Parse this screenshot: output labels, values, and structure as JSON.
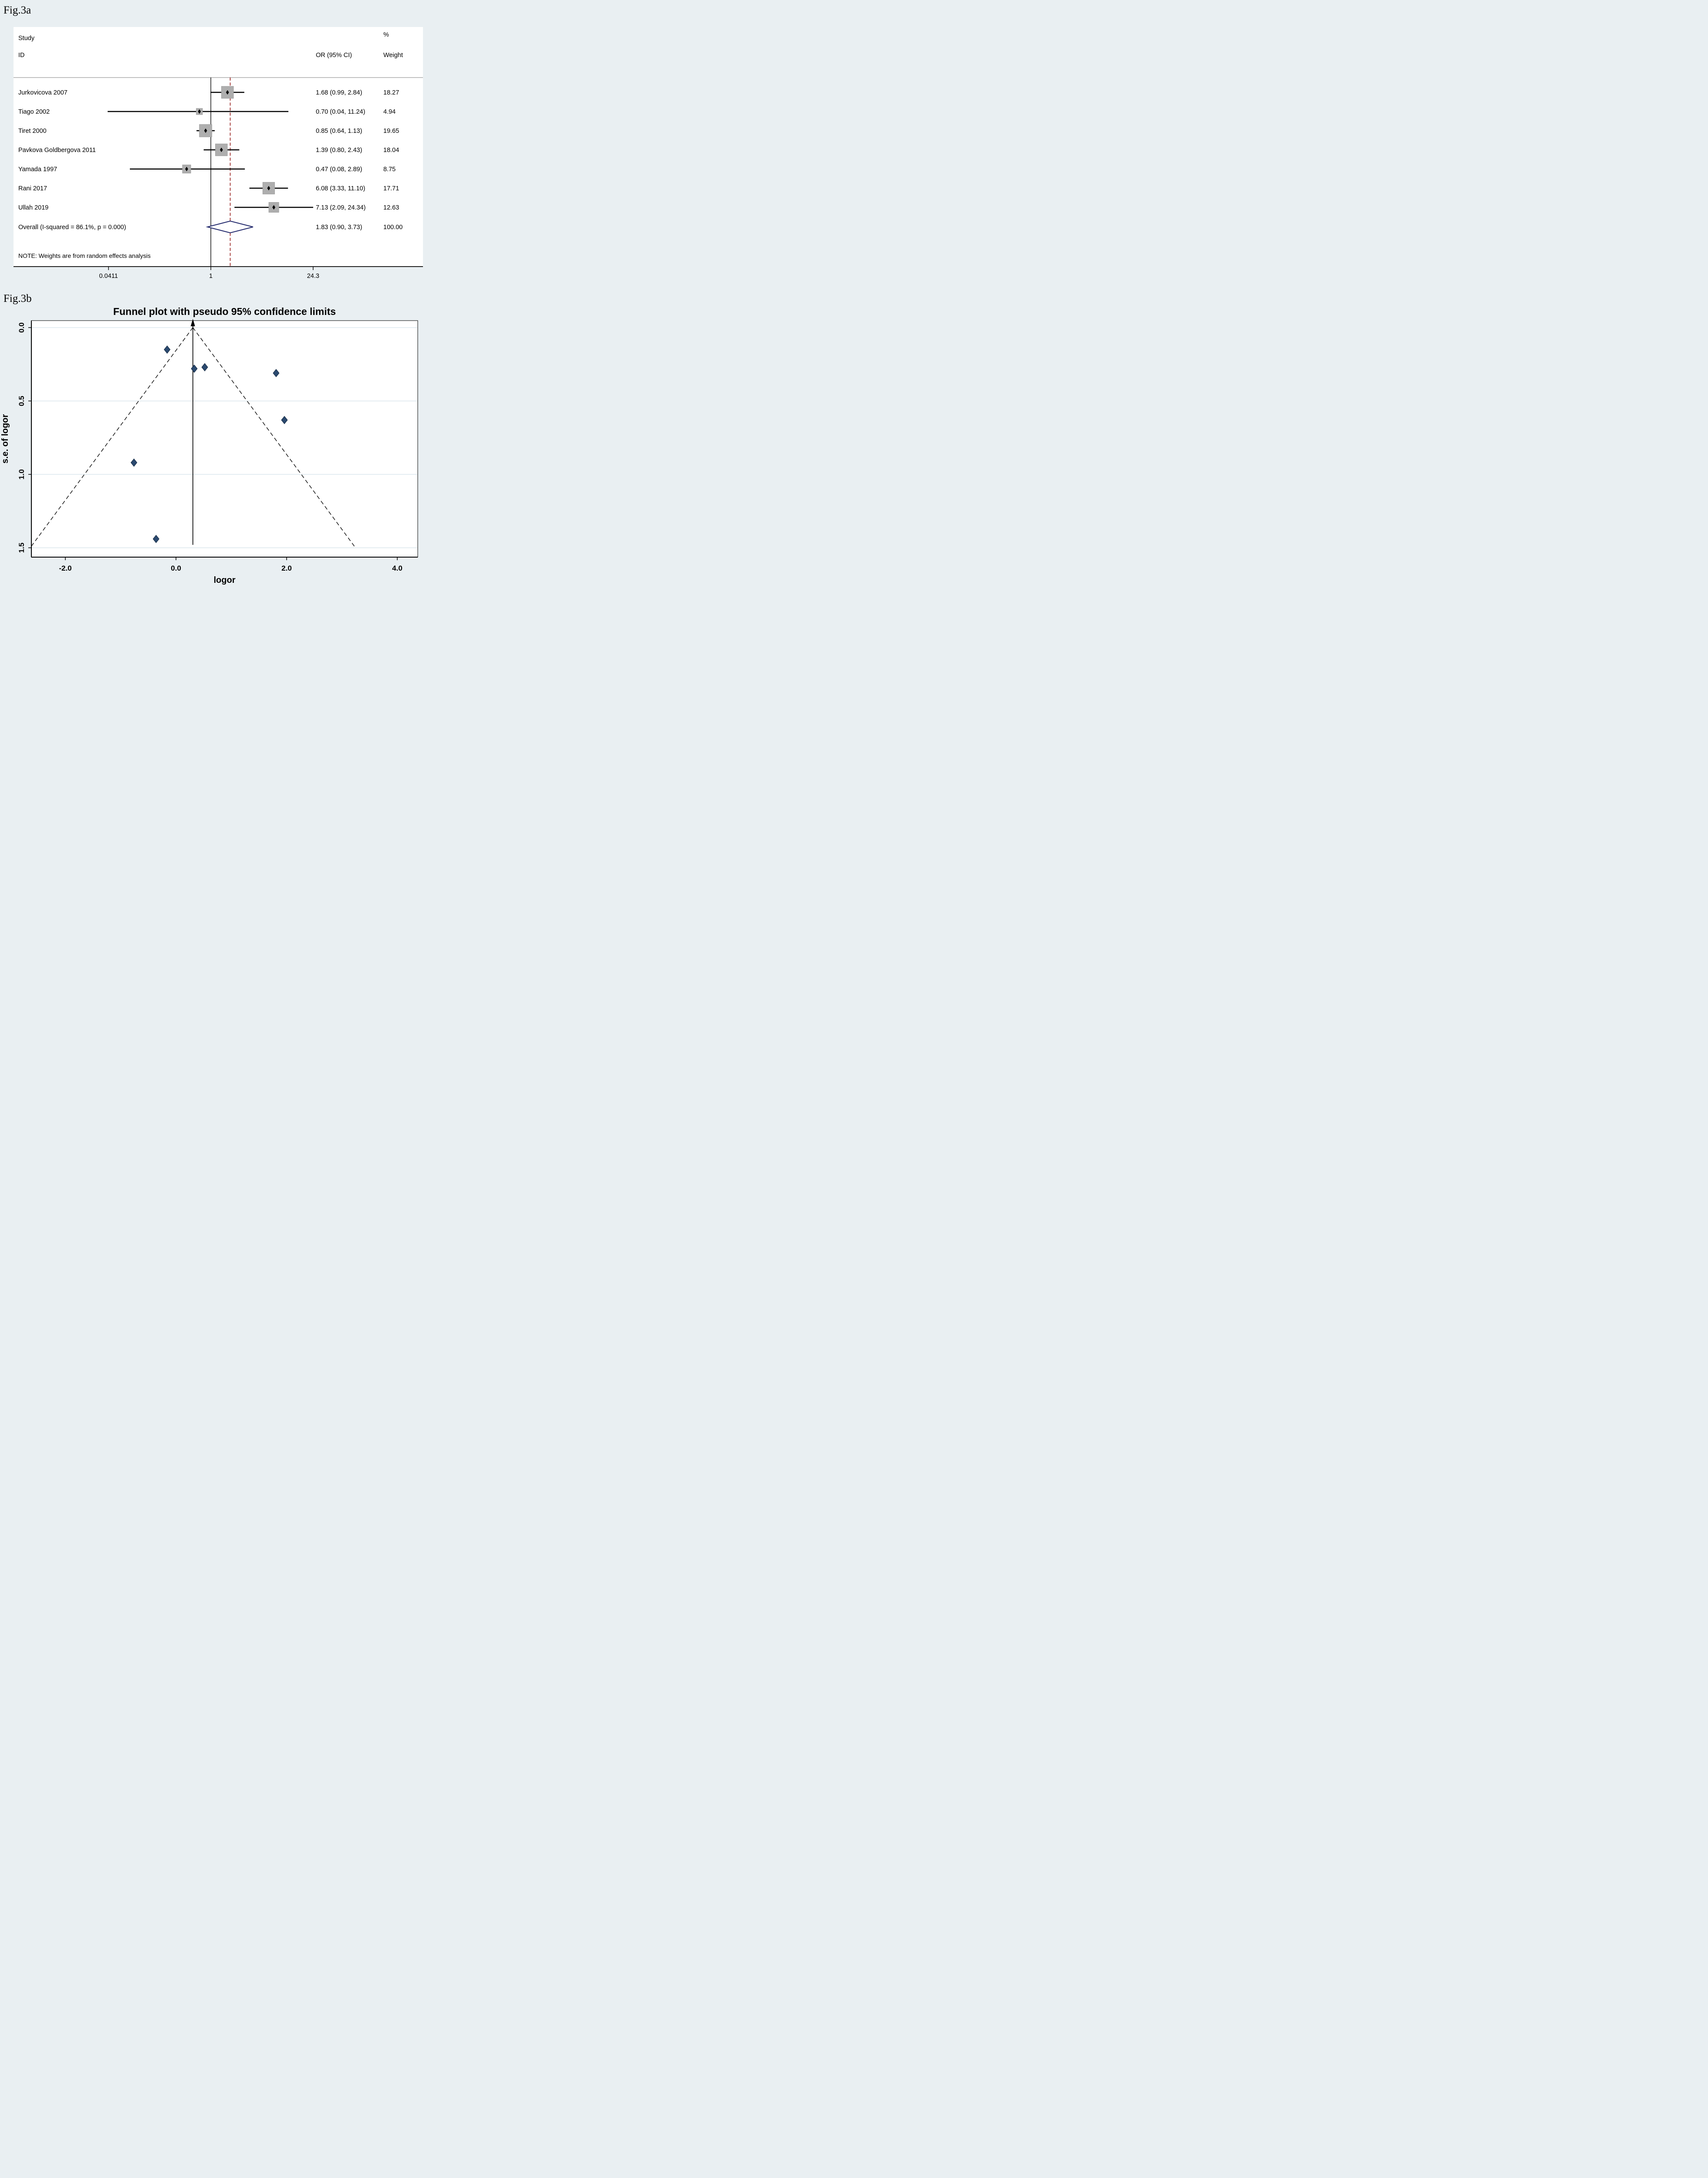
{
  "figure": {
    "panel_a_label": "Fig.3a",
    "panel_b_label": "Fig.3b"
  },
  "colors": {
    "background": "#e9eff2",
    "panel": "#ffffff",
    "square_fill": "#aeaeae",
    "square_stroke": "#9a9a9a",
    "ci_line": "#000000",
    "null_line": "#000000",
    "overall_dashed_line": "#9a2423",
    "overall_diamond_outline": "#232a6d",
    "grid_line": "#dbe7ed",
    "funnel_point_fill": "#2b4a70",
    "funnel_point_stroke": "#152c47",
    "divider": "#999999"
  },
  "chart_data": [
    {
      "type": "forest",
      "scale": "log",
      "header": {
        "study_line1": "Study",
        "study_line2": "ID",
        "percent": "%",
        "or_ci": "OR (95% CI)",
        "weight": "Weight"
      },
      "studies": [
        {
          "label": "Jurkovicova 2007",
          "or": 1.68,
          "ci_low": 0.99,
          "ci_high": 2.84,
          "or_text": "1.68 (0.99, 2.84)",
          "weight": 18.27,
          "weight_text": "18.27"
        },
        {
          "label": "Tiago 2002",
          "or": 0.7,
          "ci_low": 0.04,
          "ci_high": 11.24,
          "or_text": "0.70 (0.04, 11.24)",
          "weight": 4.94,
          "weight_text": "4.94"
        },
        {
          "label": "Tiret 2000",
          "or": 0.85,
          "ci_low": 0.64,
          "ci_high": 1.13,
          "or_text": "0.85 (0.64, 1.13)",
          "weight": 19.65,
          "weight_text": "19.65"
        },
        {
          "label": "Pavkova Goldbergova 2011",
          "or": 1.39,
          "ci_low": 0.8,
          "ci_high": 2.43,
          "or_text": "1.39 (0.80, 2.43)",
          "weight": 18.04,
          "weight_text": "18.04"
        },
        {
          "label": "Yamada 1997",
          "or": 0.47,
          "ci_low": 0.08,
          "ci_high": 2.89,
          "or_text": "0.47 (0.08, 2.89)",
          "weight": 8.75,
          "weight_text": "8.75"
        },
        {
          "label": "Rani 2017",
          "or": 6.08,
          "ci_low": 3.33,
          "ci_high": 11.1,
          "or_text": "6.08 (3.33, 11.10)",
          "weight": 17.71,
          "weight_text": "17.71"
        },
        {
          "label": "Ullah 2019",
          "or": 7.13,
          "ci_low": 2.09,
          "ci_high": 24.34,
          "or_text": "7.13 (2.09, 24.34)",
          "weight": 12.63,
          "weight_text": "12.63"
        }
      ],
      "overall": {
        "label": "Overall  (I-squared = 86.1%, p = 0.000)",
        "or": 1.83,
        "ci_low": 0.9,
        "ci_high": 3.73,
        "or_text": "1.83 (0.90, 3.73)",
        "weight_text": "100.00"
      },
      "note": "NOTE: Weights are from random effects analysis",
      "x_ticks": [
        {
          "value": 0.0411,
          "label": "0.0411"
        },
        {
          "value": 1,
          "label": "1"
        },
        {
          "value": 24.3,
          "label": "24.3"
        }
      ],
      "null_line_value": 1,
      "overall_dashed_value": 1.83
    },
    {
      "type": "scatter",
      "title": "Funnel plot with pseudo 95% confidence limits",
      "xlabel": "logor",
      "ylabel": "s.e. of logor",
      "xlim": [
        -2.61,
        4.37
      ],
      "ylim": [
        0,
        1.563
      ],
      "grid": true,
      "x_ticks": [
        {
          "value": -2.0,
          "label": "-2.0"
        },
        {
          "value": 0.0,
          "label": "0.0"
        },
        {
          "value": 2.0,
          "label": "2.0"
        },
        {
          "value": 4.0,
          "label": "4.0"
        }
      ],
      "y_ticks": [
        {
          "value": 0.0,
          "label": "0.0"
        },
        {
          "value": 0.5,
          "label": "0.5"
        },
        {
          "value": 1.0,
          "label": "1.0"
        },
        {
          "value": 1.5,
          "label": "1.5"
        }
      ],
      "points": [
        {
          "study": "Tiret 2000",
          "x": -0.16,
          "y": 0.15
        },
        {
          "study": "Jurkovicova 2007",
          "x": 0.52,
          "y": 0.27
        },
        {
          "study": "Pavkova Goldbergova 2011",
          "x": 0.33,
          "y": 0.28
        },
        {
          "study": "Rani 2017",
          "x": 1.81,
          "y": 0.31
        },
        {
          "study": "Ullah 2019",
          "x": 1.96,
          "y": 0.63
        },
        {
          "study": "Yamada 1997",
          "x": -0.76,
          "y": 0.92
        },
        {
          "study": "Tiago 2002",
          "x": -0.36,
          "y": 1.44
        }
      ],
      "center_line_x": 0.305,
      "pseudo_ci": {
        "apex_x": 0.305,
        "apex_se": 0,
        "end_se": 1.49,
        "multiplier": 1.96
      }
    }
  ]
}
